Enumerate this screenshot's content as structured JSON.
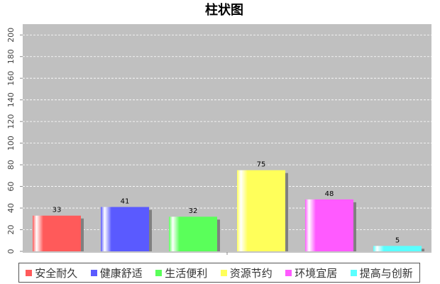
{
  "chart_data": {
    "type": "bar",
    "title": "柱状图",
    "categories": [
      "安全耐久",
      "健康舒适",
      "生活便利",
      "资源节约",
      "环境宜居",
      "提高与创新"
    ],
    "values": [
      33,
      41,
      32,
      75,
      48,
      5
    ],
    "colors": [
      "#ff5a5a",
      "#5a5aff",
      "#5aff5a",
      "#ffff5a",
      "#ff5aff",
      "#5affff"
    ],
    "xlabel": "",
    "ylabel": "",
    "ylim": [
      0,
      210
    ],
    "yticks": [
      0,
      20,
      40,
      60,
      80,
      100,
      120,
      140,
      160,
      180,
      200
    ],
    "grid": true,
    "legend_position": "bottom",
    "plot_background": "#c0c0c0"
  }
}
